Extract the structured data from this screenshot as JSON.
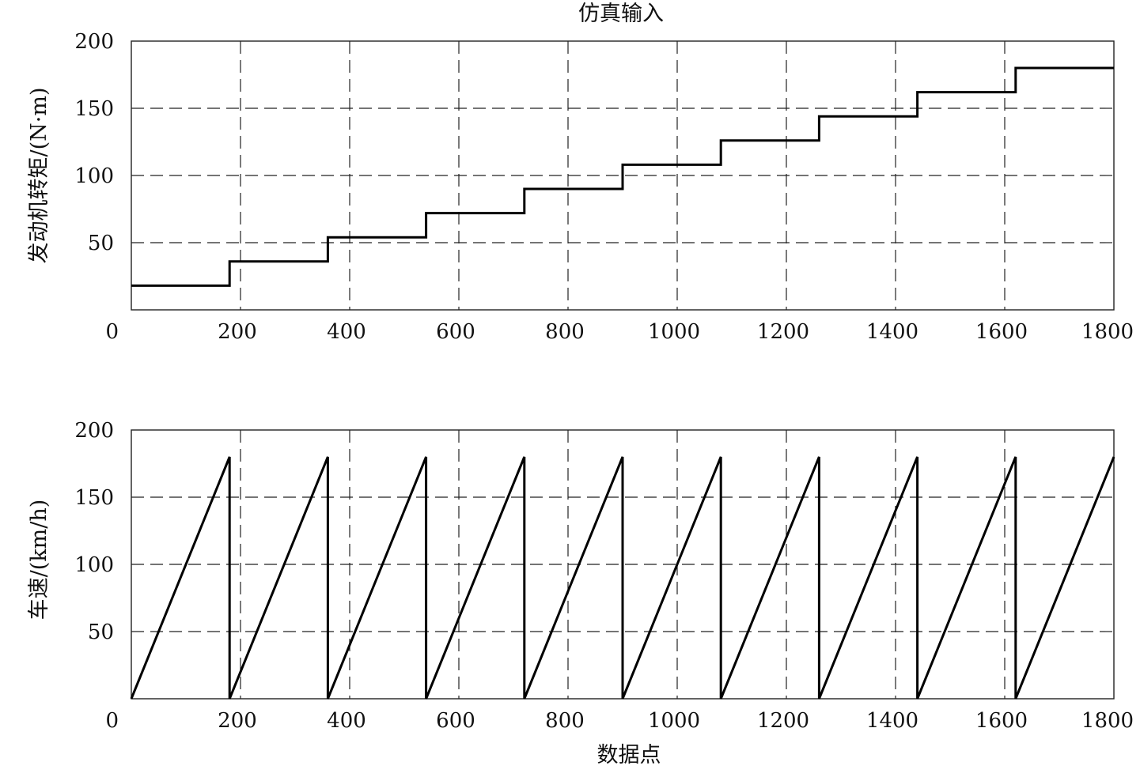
{
  "title": "仿真输入",
  "chart_data": [
    {
      "type": "line",
      "ylabel": "发动机转矩/(N·m)",
      "xlabel": "",
      "xlim": [
        0,
        1800
      ],
      "ylim": [
        0,
        200
      ],
      "xticks": [
        0,
        200,
        400,
        600,
        800,
        1000,
        1200,
        1400,
        1600,
        1800
      ],
      "yticks": [
        50,
        100,
        150,
        200
      ],
      "xgrid": [
        200,
        400,
        600,
        800,
        1000,
        1200,
        1400,
        1600
      ],
      "ygrid": [
        50,
        100,
        150
      ],
      "grid": true,
      "series": [
        {
          "x": [
            0,
            180,
            180,
            360,
            360,
            540,
            540,
            720,
            720,
            900,
            900,
            1080,
            1080,
            1260,
            1260,
            1440,
            1440,
            1620,
            1620,
            1800
          ],
          "y": [
            18,
            18,
            36,
            36,
            54,
            54,
            72,
            72,
            90,
            90,
            108,
            108,
            126,
            126,
            144,
            144,
            162,
            162,
            180,
            180
          ]
        }
      ]
    },
    {
      "type": "line",
      "ylabel": "车速/(km/h)",
      "xlabel": "数据点",
      "xlim": [
        0,
        1800
      ],
      "ylim": [
        0,
        200
      ],
      "xticks": [
        0,
        200,
        400,
        600,
        800,
        1000,
        1200,
        1400,
        1600,
        1800
      ],
      "yticks": [
        50,
        100,
        150,
        200
      ],
      "xgrid": [
        200,
        400,
        600,
        800,
        1000,
        1200,
        1400,
        1600
      ],
      "ygrid": [
        50,
        100,
        150
      ],
      "grid": true,
      "series": [
        {
          "x": [
            0,
            180,
            180,
            360,
            360,
            540,
            540,
            720,
            720,
            900,
            900,
            1080,
            1080,
            1260,
            1260,
            1440,
            1440,
            1620,
            1620,
            1800
          ],
          "y": [
            0,
            180,
            0,
            180,
            0,
            180,
            0,
            180,
            0,
            180,
            0,
            180,
            0,
            180,
            0,
            180,
            0,
            180,
            0,
            180
          ]
        }
      ]
    }
  ]
}
